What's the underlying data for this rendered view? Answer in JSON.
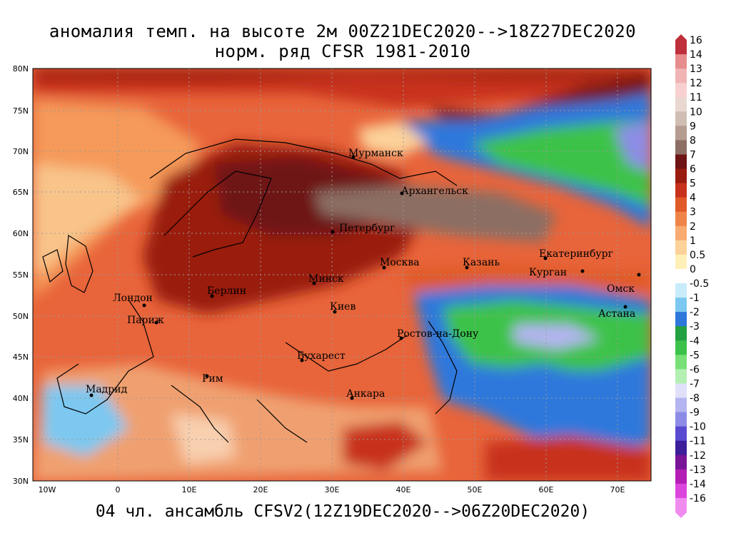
{
  "header": {
    "title_line1": "аномалия темп. на высоте 2м 00Z21DEC2020-->18Z27DEC2020",
    "title_line2": "норм. ряд CFSR 1981-2010"
  },
  "footer": {
    "text": "04 чл. ансамбль CFSV2(12Z19DEC2020-->06Z20DEC2020)"
  },
  "axes": {
    "lat_labels": [
      "80N",
      "75N",
      "70N",
      "65N",
      "60N",
      "55N",
      "50N",
      "45N",
      "40N",
      "35N",
      "30N"
    ],
    "lon_labels": [
      "10W",
      "0",
      "10E",
      "20E",
      "30E",
      "40E",
      "50E",
      "60E",
      "70E"
    ]
  },
  "cities": [
    {
      "name": "Мурманск"
    },
    {
      "name": "Архангельск"
    },
    {
      "name": "Петербург"
    },
    {
      "name": "Москва"
    },
    {
      "name": "Казань"
    },
    {
      "name": "Екатеринбург"
    },
    {
      "name": "Курган"
    },
    {
      "name": "Омск"
    },
    {
      "name": "Астана"
    },
    {
      "name": "Минск"
    },
    {
      "name": "Киев"
    },
    {
      "name": "Берлин"
    },
    {
      "name": "Лондон"
    },
    {
      "name": "Париж"
    },
    {
      "name": "Мадрид"
    },
    {
      "name": "Рим"
    },
    {
      "name": "Бухарест"
    },
    {
      "name": "Анкара"
    },
    {
      "name": "Ростов-на-Дону"
    }
  ],
  "colorbar": {
    "labels": [
      "16",
      "14",
      "13",
      "12",
      "11",
      "10",
      "9",
      "8",
      "7",
      "6",
      "5",
      "4",
      "3",
      "2",
      "1",
      "0.5",
      "0",
      "-0.5",
      "-1",
      "-2",
      "-3",
      "-4",
      "-5",
      "-6",
      "-7",
      "-8",
      "-9",
      "-10",
      "-11",
      "-12",
      "-13",
      "-14",
      "-16"
    ],
    "colors": [
      "#c0303c",
      "#e68c8c",
      "#f0b4b4",
      "#f8d0d0",
      "#e8d8d0",
      "#d0beb4",
      "#b49c90",
      "#8c6e64",
      "#6e1414",
      "#9a1c10",
      "#c8321c",
      "#e05a28",
      "#f08448",
      "#f8aa70",
      "#fcd29a",
      "#fff0b8",
      "#ffffff",
      "#c8ecfa",
      "#7cc8f0",
      "#2e78dc",
      "#22a042",
      "#3cc24a",
      "#78e078",
      "#b4f0b4",
      "#e0e0fa",
      "#b4b4f0",
      "#8c8ce6",
      "#5a4ad2",
      "#3c1e9a",
      "#781496",
      "#b41eb4",
      "#dc46dc",
      "#f08cf0"
    ]
  }
}
